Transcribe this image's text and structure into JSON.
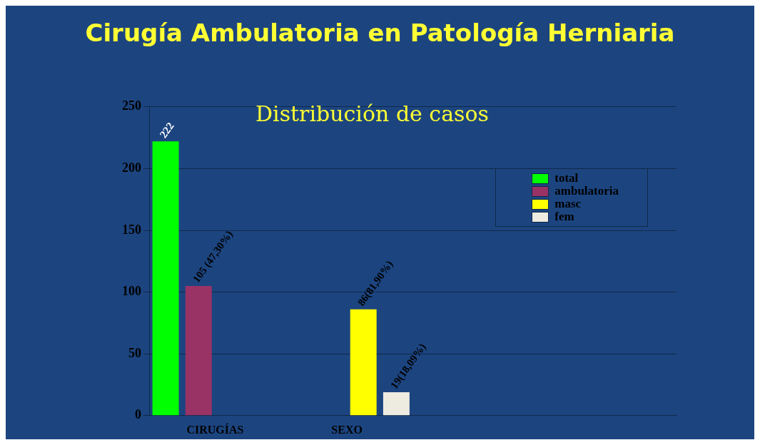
{
  "chart_data": {
    "type": "bar",
    "title": "Cirugía Ambulatoria en Patología Herniaria",
    "subtitle": "Distribución de casos",
    "categories": [
      "CIRUGÍAS",
      "SEXO",
      null,
      null
    ],
    "series": [
      {
        "name": "total",
        "color": "#00ff00",
        "values": [
          222,
          null,
          null,
          null
        ],
        "value_labels": [
          "222",
          null,
          null,
          null
        ]
      },
      {
        "name": "ambulatoria",
        "color": "#993366",
        "values": [
          105,
          null,
          null,
          null
        ],
        "value_labels": [
          "105 (47,30%)",
          null,
          null,
          null
        ]
      },
      {
        "name": "masc",
        "color": "#ffff00",
        "values": [
          null,
          86,
          null,
          null
        ],
        "value_labels": [
          null,
          "86(81,90%)",
          null,
          null
        ]
      },
      {
        "name": "fem",
        "color": "#eeece1",
        "values": [
          null,
          19,
          null,
          null
        ],
        "value_labels": [
          null,
          "19(18,09%)",
          null,
          null
        ]
      }
    ],
    "ylim": [
      0,
      250
    ],
    "yticks": [
      0,
      50,
      100,
      150,
      200,
      250
    ],
    "grid": "y",
    "legend": "top right"
  }
}
